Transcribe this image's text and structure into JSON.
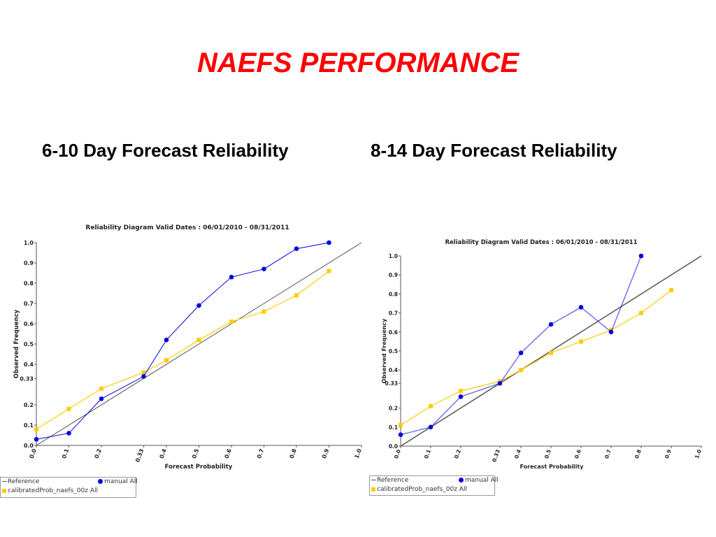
{
  "slide": {
    "title": "NAEFS PERFORMANCE",
    "subtitle_left": "6-10 Day Forecast Reliability",
    "subtitle_right": "8-14 Day Forecast Reliability"
  },
  "legends": [
    {
      "reference": "Reference",
      "manual": "manual All",
      "calibrated": "calibratedProb_naefs_00z All"
    },
    {
      "reference": "Reference",
      "manual": "manual All",
      "calibrated": "calibratedProb_naefs_00z All"
    }
  ],
  "colors": {
    "title": "#ff0000",
    "manual": "#0000dd",
    "calibrated": "#ffcc00",
    "reference": "#555555"
  },
  "chart_data": [
    {
      "type": "line",
      "title": "Reliability Diagram Valid Dates : 06/01/2010 - 08/31/2011",
      "xlabel": "Forecast Probability",
      "ylabel": "Observed Frequency",
      "xlim": [
        0,
        1
      ],
      "ylim": [
        0,
        1
      ],
      "x_ticks": [
        "0.0",
        "0.1",
        "0.2",
        "0.33",
        "0.4",
        "0.5",
        "0.6",
        "0.7",
        "0.8",
        "0.9",
        "1.0"
      ],
      "y_ticks": [
        "0.0",
        "0.1",
        "0.2",
        "0.33",
        "0.4",
        "0.5",
        "0.6",
        "0.7",
        "0.8",
        "0.9",
        "1.0"
      ],
      "grid": false,
      "legend": "below-left",
      "series": [
        {
          "name": "Reference",
          "x": [
            0,
            1
          ],
          "y": [
            0,
            1
          ]
        },
        {
          "name": "manual All",
          "x": [
            0.0,
            0.1,
            0.2,
            0.33,
            0.4,
            0.5,
            0.6,
            0.7,
            0.8,
            0.9
          ],
          "y": [
            0.03,
            0.06,
            0.23,
            0.34,
            0.52,
            0.69,
            0.83,
            0.87,
            0.97,
            1.0
          ]
        },
        {
          "name": "calibratedProb_naefs_00z All",
          "x": [
            0.0,
            0.1,
            0.2,
            0.33,
            0.4,
            0.5,
            0.6,
            0.7,
            0.8,
            0.9
          ],
          "y": [
            0.08,
            0.18,
            0.28,
            0.36,
            0.42,
            0.52,
            0.61,
            0.66,
            0.74,
            0.86
          ]
        }
      ]
    },
    {
      "type": "line",
      "title": "Reliability Diagram Valid Dates : 06/01/2010 - 08/31/2011",
      "xlabel": "Forecast Probability",
      "ylabel": "Observed Frequency",
      "xlim": [
        0,
        1
      ],
      "ylim": [
        0,
        1
      ],
      "x_ticks": [
        "0.0",
        "0.1",
        "0.2",
        "0.33",
        "0.4",
        "0.5",
        "0.6",
        "0.7",
        "0.8",
        "0.9",
        "1.0"
      ],
      "y_ticks": [
        "0.0",
        "0.1",
        "0.2",
        "0.33",
        "0.4",
        "0.5",
        "0.6",
        "0.7",
        "0.8",
        "0.9",
        "1.0"
      ],
      "grid": false,
      "legend": "below-left",
      "series": [
        {
          "name": "Reference",
          "x": [
            0,
            1
          ],
          "y": [
            0,
            1
          ]
        },
        {
          "name": "manual All",
          "x": [
            0.0,
            0.1,
            0.2,
            0.33,
            0.4,
            0.5,
            0.6,
            0.7,
            0.8
          ],
          "y": [
            0.06,
            0.1,
            0.26,
            0.33,
            0.49,
            0.64,
            0.73,
            0.6,
            1.0
          ]
        },
        {
          "name": "calibratedProb_naefs_00z All",
          "x": [
            0.0,
            0.1,
            0.2,
            0.33,
            0.4,
            0.5,
            0.6,
            0.7,
            0.8,
            0.9
          ],
          "y": [
            0.11,
            0.21,
            0.29,
            0.34,
            0.4,
            0.49,
            0.55,
            0.61,
            0.7,
            0.82
          ]
        }
      ]
    }
  ]
}
